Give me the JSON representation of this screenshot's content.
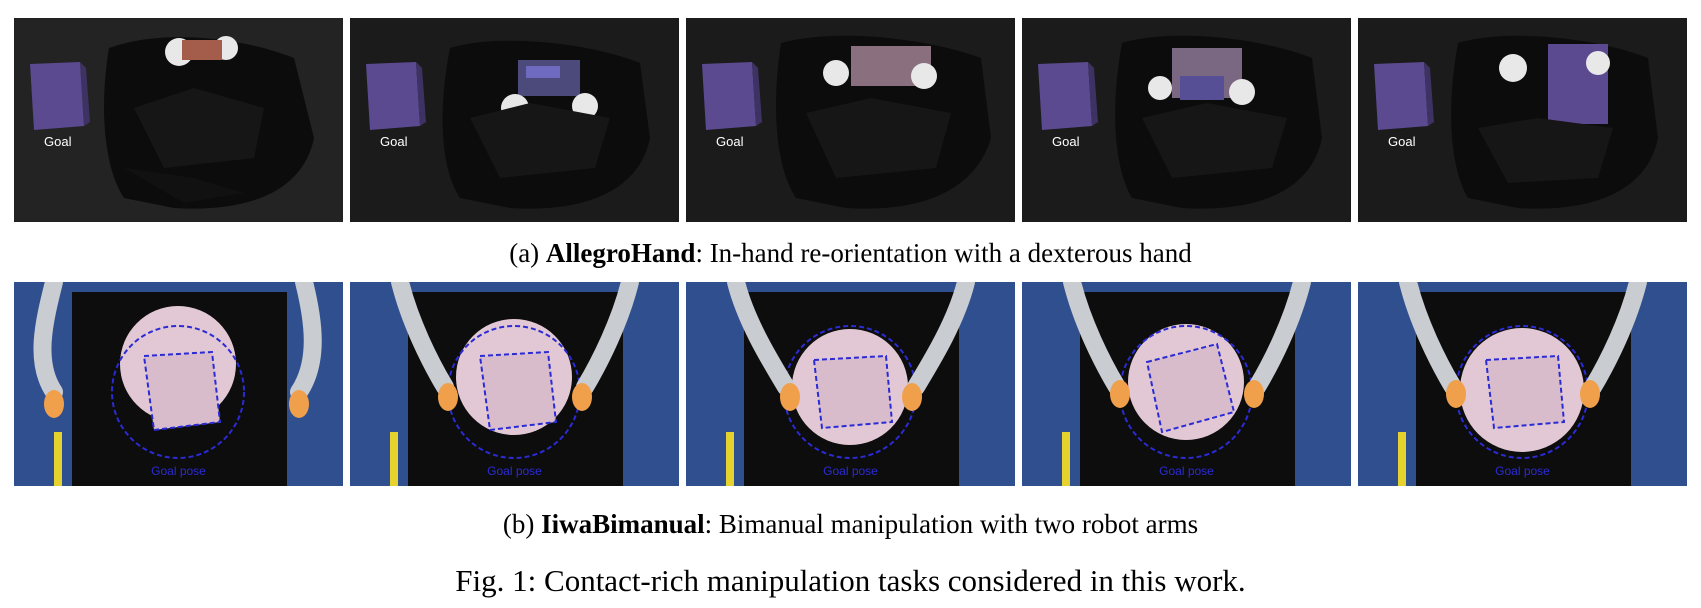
{
  "figure": {
    "caption": {
      "label": "Fig. 1:",
      "text": "Contact-rich manipulation tasks considered in this work."
    },
    "subfigures": [
      {
        "tag": "(a)",
        "name": "AllegroHand",
        "description": ": In-hand re-orientation with a dexterous hand",
        "panel_label": "Goal",
        "panel_count": 5
      },
      {
        "tag": "(b)",
        "name": "IiwaBimanual",
        "description": ": Bimanual manipulation with two robot arms",
        "panel_label": "Goal pose",
        "panel_count": 5
      }
    ]
  },
  "colors": {
    "background": "#ffffff",
    "photo_background": "#1b1b1b",
    "cube": "#5b4a8f",
    "goal_pose_outline": "#2b2bd6",
    "disk": "#e2c8d4",
    "robot_arm": "#c9ccd1",
    "gripper": "#f0a04b",
    "table_board": "#2f4f8f"
  }
}
